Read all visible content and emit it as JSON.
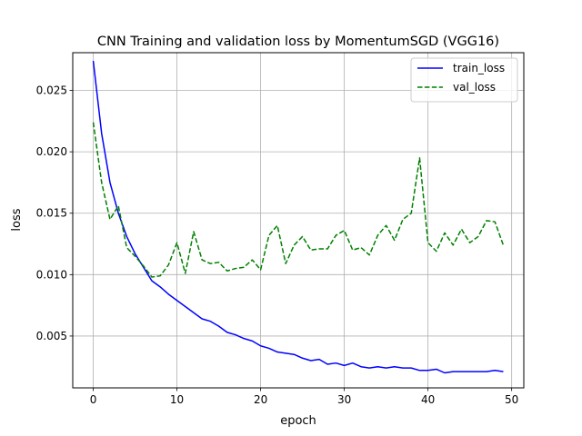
{
  "chart_data": {
    "type": "line",
    "title": "CNN Training and validation loss by MomentumSGD (VGG16)",
    "xlabel": "epoch",
    "ylabel": "loss",
    "xlim": [
      -2.45,
      51.45
    ],
    "ylim": [
      0.00078,
      0.02807
    ],
    "xticks": [
      0,
      10,
      20,
      30,
      40,
      50
    ],
    "yticks": [
      0.005,
      0.01,
      0.015,
      0.02,
      0.025
    ],
    "ytick_labels": [
      "0.005",
      "0.010",
      "0.015",
      "0.020",
      "0.025"
    ],
    "grid": true,
    "legend_position": "top-right",
    "x": [
      0,
      1,
      2,
      3,
      4,
      5,
      6,
      7,
      8,
      9,
      10,
      11,
      12,
      13,
      14,
      15,
      16,
      17,
      18,
      19,
      20,
      21,
      22,
      23,
      24,
      25,
      26,
      27,
      28,
      29,
      30,
      31,
      32,
      33,
      34,
      35,
      36,
      37,
      38,
      39,
      40,
      41,
      42,
      43,
      44,
      45,
      46,
      47,
      48,
      49
    ],
    "series": [
      {
        "name": "train_loss",
        "color": "#0000ff",
        "dash": "solid",
        "values": [
          0.0274,
          0.0215,
          0.0175,
          0.015,
          0.0131,
          0.0117,
          0.0106,
          0.0095,
          0.009,
          0.0084,
          0.0079,
          0.0074,
          0.0069,
          0.0064,
          0.0062,
          0.0058,
          0.0053,
          0.0051,
          0.0048,
          0.0046,
          0.0042,
          0.004,
          0.0037,
          0.0036,
          0.0035,
          0.0032,
          0.003,
          0.0031,
          0.0027,
          0.0028,
          0.0026,
          0.0028,
          0.0025,
          0.0024,
          0.0025,
          0.0024,
          0.0025,
          0.0024,
          0.0024,
          0.0022,
          0.0022,
          0.0023,
          0.002,
          0.0021,
          0.0021,
          0.0021,
          0.0021,
          0.0021,
          0.0022,
          0.0021
        ]
      },
      {
        "name": "val_loss",
        "color": "#008000",
        "dash": "dashed",
        "values": [
          0.0224,
          0.0175,
          0.0145,
          0.0156,
          0.0122,
          0.0115,
          0.0107,
          0.0098,
          0.0099,
          0.0108,
          0.0126,
          0.0101,
          0.0135,
          0.0112,
          0.0109,
          0.011,
          0.0103,
          0.0105,
          0.0106,
          0.0112,
          0.0104,
          0.0132,
          0.014,
          0.0109,
          0.0124,
          0.0131,
          0.012,
          0.0121,
          0.0121,
          0.0132,
          0.0136,
          0.012,
          0.0122,
          0.0116,
          0.0132,
          0.014,
          0.0128,
          0.0145,
          0.015,
          0.0195,
          0.0126,
          0.0119,
          0.0134,
          0.0124,
          0.0137,
          0.0126,
          0.0131,
          0.0144,
          0.0143,
          0.0124
        ]
      }
    ]
  }
}
